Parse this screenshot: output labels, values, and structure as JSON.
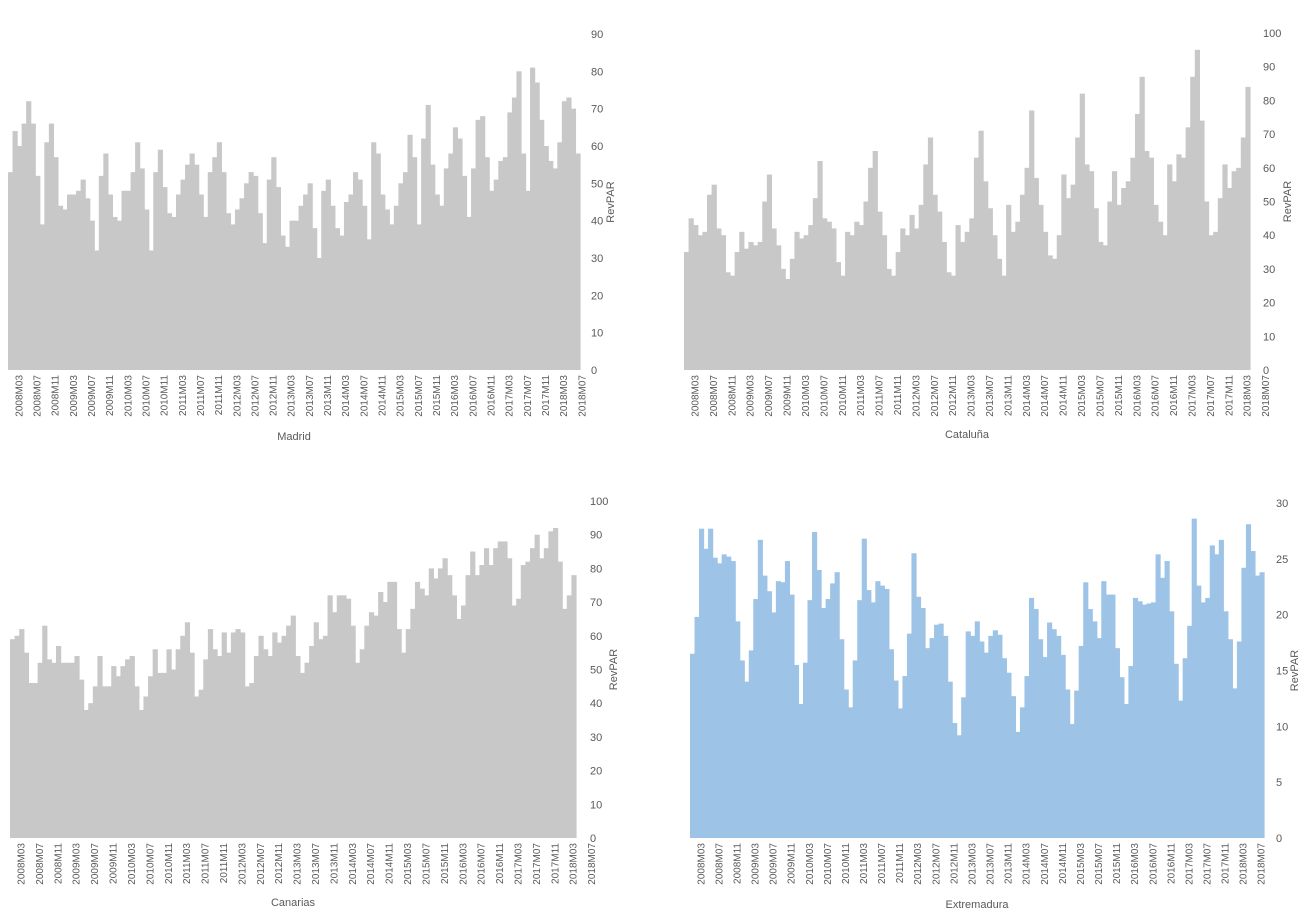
{
  "chart_data": [
    {
      "type": "bar",
      "xlabel": "Madrid",
      "ylabel": "RevPAR",
      "ylim": [
        0,
        90
      ],
      "yticks": [
        "0",
        "10",
        "20",
        "30",
        "40",
        "50",
        "60",
        "70",
        "80",
        "90"
      ],
      "xtick_labels": [
        "2008M03",
        "2008M07",
        "2008M11",
        "2009M03",
        "2009M07",
        "2009M11",
        "2010M03",
        "2010M07",
        "2010M11",
        "2011M03",
        "2011M07",
        "2011M11",
        "2012M03",
        "2012M07",
        "2012M11",
        "2013M03",
        "2013M07",
        "2013M11",
        "2014M03",
        "2014M07",
        "2014M11",
        "2015M03",
        "2015M07",
        "2015M11",
        "2016M03",
        "2016M07",
        "2016M11",
        "2017M03",
        "2017M07",
        "2017M11",
        "2018M03",
        "2018M07"
      ],
      "color": "#c8c8c8",
      "values": [
        53,
        64,
        60,
        66,
        72,
        66,
        52,
        39,
        61,
        66,
        57,
        44,
        43,
        47,
        47,
        48,
        51,
        46,
        40,
        32,
        52,
        58,
        47,
        41,
        40,
        48,
        48,
        53,
        61,
        54,
        43,
        32,
        53,
        59,
        49,
        42,
        41,
        47,
        51,
        55,
        58,
        55,
        47,
        41,
        53,
        57,
        61,
        53,
        42,
        39,
        43,
        46,
        50,
        53,
        52,
        42,
        34,
        51,
        57,
        49,
        36,
        33,
        40,
        40,
        44,
        47,
        50,
        38,
        30,
        48,
        51,
        44,
        38,
        36,
        45,
        47,
        53,
        51,
        44,
        35,
        61,
        58,
        47,
        43,
        39,
        44,
        50,
        53,
        63,
        57,
        39,
        62,
        71,
        55,
        47,
        44,
        54,
        58,
        65,
        62,
        52,
        41,
        54,
        67,
        68,
        57,
        48,
        51,
        56,
        57,
        69,
        73,
        80,
        58,
        48,
        81,
        77,
        67,
        60,
        56,
        54,
        61,
        72,
        73,
        70,
        58
      ]
    },
    {
      "type": "bar",
      "xlabel": "Cataluña",
      "ylabel": "RevPAR",
      "ylim": [
        0,
        100
      ],
      "yticks": [
        "0",
        "10",
        "20",
        "30",
        "40",
        "50",
        "60",
        "70",
        "80",
        "90",
        "100"
      ],
      "xtick_labels": [
        "2008M03",
        "2008M07",
        "2008M11",
        "2009M03",
        "2009M07",
        "2009M11",
        "2010M03",
        "2010M07",
        "2010M11",
        "2011M03",
        "2011M07",
        "2011M11",
        "2012M03",
        "2012M07",
        "2012M11",
        "2013M03",
        "2013M07",
        "2013M11",
        "2014M03",
        "2014M07",
        "2014M11",
        "2015M03",
        "2015M07",
        "2015M11",
        "2016M03",
        "2016M07",
        "2016M11",
        "2017M03",
        "2017M07",
        "2017M11",
        "2018M03",
        "2018M07"
      ],
      "color": "#c8c8c8",
      "values": [
        35,
        45,
        43,
        40,
        41,
        52,
        55,
        42,
        40,
        29,
        28,
        35,
        41,
        36,
        38,
        37,
        38,
        50,
        58,
        42,
        37,
        30,
        27,
        33,
        41,
        39,
        40,
        43,
        51,
        62,
        45,
        44,
        42,
        32,
        28,
        41,
        40,
        44,
        43,
        50,
        60,
        65,
        47,
        40,
        30,
        28,
        35,
        42,
        40,
        46,
        42,
        49,
        61,
        69,
        52,
        47,
        38,
        29,
        28,
        43,
        38,
        41,
        45,
        63,
        71,
        56,
        48,
        40,
        33,
        28,
        49,
        41,
        44,
        52,
        60,
        77,
        57,
        49,
        41,
        34,
        33,
        40,
        58,
        51,
        55,
        69,
        82,
        61,
        59,
        48,
        38,
        37,
        50,
        59,
        49,
        54,
        56,
        63,
        76,
        87,
        65,
        63,
        49,
        44,
        40,
        61,
        56,
        64,
        63,
        72,
        87,
        95,
        74,
        50,
        40,
        41,
        51,
        61,
        54,
        59,
        60,
        69,
        84
      ]
    },
    {
      "type": "bar",
      "xlabel": "Canarias",
      "ylabel": "RevPAR",
      "ylim": [
        0,
        100
      ],
      "yticks": [
        "0",
        "10",
        "20",
        "30",
        "40",
        "50",
        "60",
        "70",
        "80",
        "90",
        "100"
      ],
      "xtick_labels": [
        "2008M03",
        "2008M07",
        "2008M11",
        "2009M03",
        "2009M07",
        "2009M11",
        "2010M03",
        "2010M07",
        "2010M11",
        "2011M03",
        "2011M07",
        "2011M11",
        "2012M03",
        "2012M07",
        "2012M11",
        "2013M03",
        "2013M07",
        "2013M11",
        "2014M03",
        "2014M07",
        "2014M11",
        "2015M03",
        "2015M07",
        "2015M11",
        "2016M03",
        "2016M07",
        "2016M11",
        "2017M03",
        "2017M07",
        "2017M11",
        "2018M03",
        "2018M07"
      ],
      "color": "#c8c8c8",
      "values": [
        59,
        60,
        62,
        55,
        46,
        46,
        52,
        63,
        53,
        52,
        57,
        52,
        52,
        52,
        54,
        47,
        38,
        40,
        45,
        54,
        45,
        45,
        51,
        48,
        51,
        53,
        54,
        45,
        38,
        42,
        48,
        56,
        49,
        49,
        56,
        50,
        56,
        60,
        64,
        55,
        42,
        44,
        53,
        62,
        56,
        54,
        61,
        55,
        61,
        62,
        61,
        45,
        46,
        54,
        60,
        56,
        54,
        61,
        58,
        60,
        63,
        66,
        54,
        49,
        52,
        57,
        64,
        59,
        60,
        72,
        67,
        72,
        72,
        71,
        63,
        52,
        56,
        63,
        67,
        66,
        73,
        70,
        76,
        76,
        62,
        55,
        62,
        68,
        76,
        74,
        72,
        80,
        77,
        80,
        83,
        78,
        72,
        65,
        69,
        78,
        85,
        78,
        81,
        86,
        81,
        86,
        88,
        88,
        83,
        69,
        71,
        81,
        82,
        86,
        90,
        83,
        86,
        91,
        92,
        82,
        68,
        72,
        78
      ]
    },
    {
      "type": "bar",
      "xlabel": "Extremadura",
      "ylabel": "RevPAR",
      "ylim": [
        0,
        30
      ],
      "yticks": [
        "0",
        "5",
        "10",
        "15",
        "20",
        "25",
        "30"
      ],
      "xtick_labels": [
        "2008M03",
        "2008M07",
        "2008M11",
        "2009M03",
        "2009M07",
        "2009M11",
        "2010M03",
        "2010M07",
        "2010M11",
        "2011M03",
        "2011M07",
        "2011M11",
        "2012M03",
        "2012M07",
        "2012M11",
        "2013M03",
        "2013M07",
        "2013M11",
        "2014M03",
        "2014M07",
        "2014M11",
        "2015M03",
        "2015M07",
        "2015M11",
        "2016M03",
        "2016M07",
        "2016M11",
        "2017M03",
        "2017M07",
        "2017M11",
        "2018M03",
        "2018M07"
      ],
      "color": "#9dc3e6",
      "values": [
        16.5,
        19.8,
        27.7,
        25.9,
        27.7,
        25.1,
        24.6,
        25.4,
        25.2,
        24.8,
        19.4,
        15.9,
        14,
        16.8,
        21.4,
        26.7,
        23.5,
        22.1,
        20.2,
        23,
        22.9,
        24.8,
        21.8,
        15.5,
        12,
        15.7,
        21.3,
        27.4,
        24,
        20.6,
        21.4,
        22.8,
        23.8,
        17.8,
        13.3,
        11.7,
        15.9,
        21.3,
        26.8,
        22.2,
        21.1,
        23,
        22.6,
        22.3,
        16.9,
        14.1,
        11.6,
        14.5,
        18.3,
        25.5,
        21.6,
        20.6,
        17,
        17.9,
        19.1,
        19.2,
        18.1,
        14,
        10.3,
        9.2,
        12.6,
        18.5,
        18.1,
        19.4,
        17.6,
        16.6,
        18.1,
        18.6,
        18.2,
        16.1,
        14.8,
        12.7,
        9.5,
        11.7,
        14.5,
        21.5,
        20.5,
        17.8,
        16.2,
        19.3,
        18.7,
        18.1,
        16.4,
        13.3,
        10.2,
        13.2,
        17.2,
        22.9,
        20.5,
        19.4,
        17.9,
        23,
        21.8,
        21.8,
        17,
        14.4,
        12,
        15.4,
        21.5,
        21.2,
        20.9,
        21,
        21.1,
        25.4,
        23.3,
        24.8,
        20.3,
        15.6,
        12.3,
        16.1,
        19,
        28.6,
        22.6,
        21.1,
        21.5,
        26.2,
        25.4,
        26.7,
        20.3,
        17.8,
        13.4,
        17.6,
        24.2,
        28.1,
        25.7,
        23.5,
        23.8
      ]
    }
  ]
}
